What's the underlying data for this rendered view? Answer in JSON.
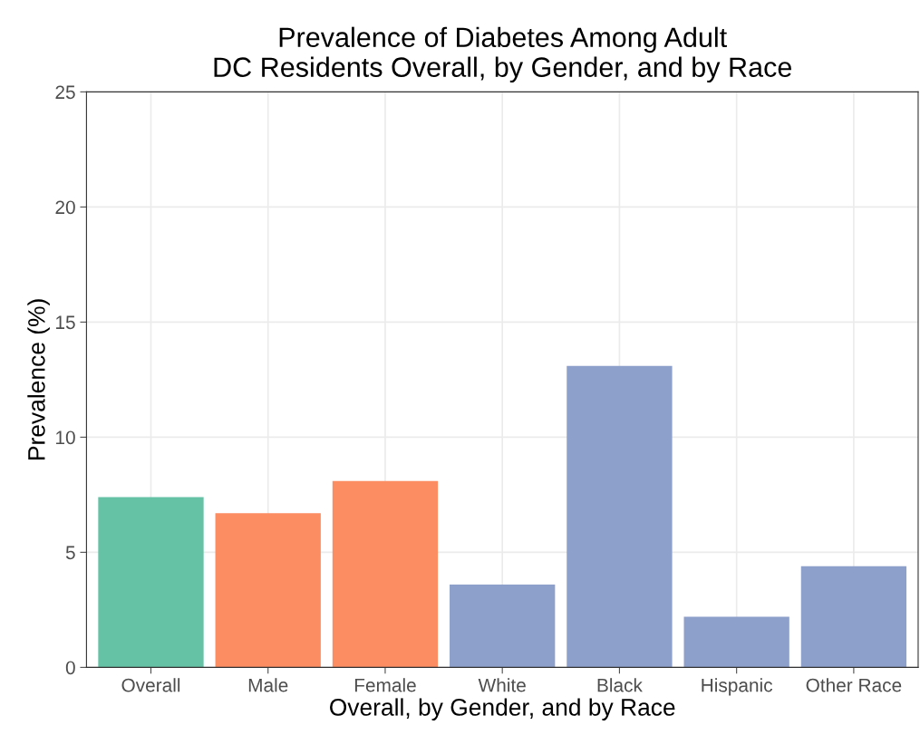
{
  "chart_data": {
    "type": "bar",
    "title": "Prevalence of Diabetes Among Adult\nDC Residents Overall, by Gender, and by Race",
    "xlabel": "Overall, by Gender, and by Race",
    "ylabel": "Prevalence (%)",
    "categories": [
      "Overall",
      "Male",
      "Female",
      "White",
      "Black",
      "Hispanic",
      "Other Race"
    ],
    "values": [
      7.4,
      6.7,
      8.1,
      3.6,
      13.1,
      2.2,
      4.4
    ],
    "colors": [
      "#66c2a5",
      "#fc8d62",
      "#fc8d62",
      "#8da0cb",
      "#8da0cb",
      "#8da0cb",
      "#8da0cb"
    ],
    "ylim": [
      0,
      25
    ],
    "yticks": [
      0,
      5,
      10,
      15,
      20,
      25
    ],
    "grid": true
  }
}
